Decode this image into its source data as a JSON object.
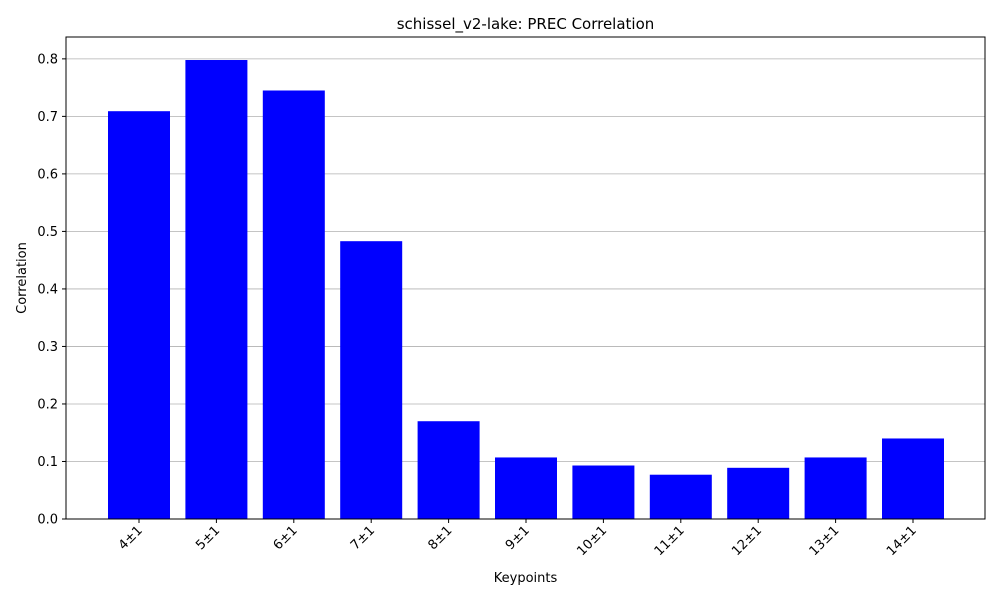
{
  "colors": {
    "bar": "#0000ff",
    "grid": "#b0b0b0",
    "axis": "#000000",
    "background": "#ffffff"
  },
  "chart_data": {
    "type": "bar",
    "title": "schissel_v2-lake: PREC Correlation",
    "xlabel": "Keypoints",
    "ylabel": "Correlation",
    "categories": [
      "4±1",
      "5±1",
      "6±1",
      "7±1",
      "8±1",
      "9±1",
      "10±1",
      "11±1",
      "12±1",
      "13±1",
      "14±1"
    ],
    "values": [
      0.709,
      0.798,
      0.745,
      0.483,
      0.17,
      0.107,
      0.093,
      0.077,
      0.089,
      0.107,
      0.14
    ],
    "ylim": [
      0,
      0.838
    ],
    "yticks": [
      0.0,
      0.1,
      0.2,
      0.3,
      0.4,
      0.5,
      0.6,
      0.7,
      0.8
    ],
    "ytick_labels": [
      "0.0",
      "0.1",
      "0.2",
      "0.3",
      "0.4",
      "0.5",
      "0.6",
      "0.7",
      "0.8"
    ],
    "grid": "horizontal",
    "legend": "none"
  }
}
